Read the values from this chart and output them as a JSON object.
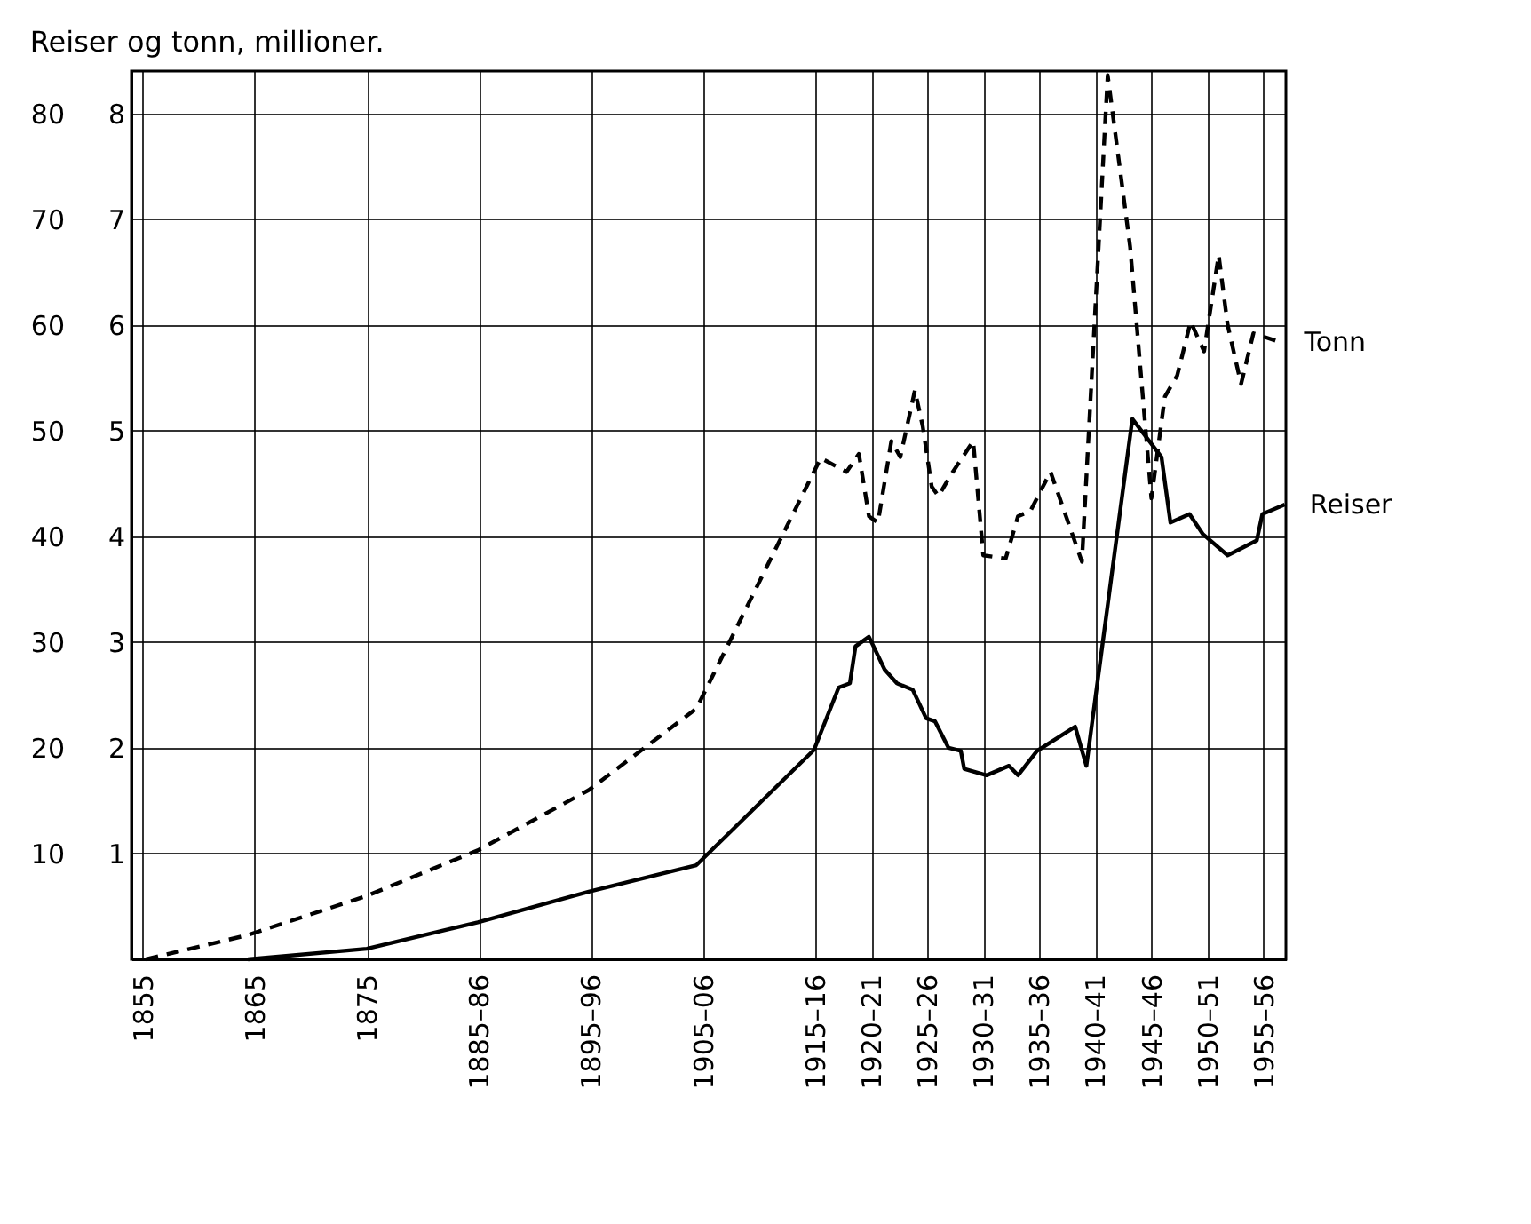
{
  "chart_data": {
    "type": "line",
    "title": "Reiser og tonn, millioner.",
    "xlim": [
      1854,
      1957
    ],
    "xticks": [
      1855,
      1865,
      1875,
      {
        "value": 1885,
        "label": "1885–86"
      },
      {
        "value": 1895,
        "label": "1895–96"
      },
      {
        "value": 1905,
        "label": "1905–06"
      },
      {
        "value": 1915,
        "label": "1915–16"
      },
      {
        "value": 1920,
        "label": "1920–21"
      },
      {
        "value": 1925,
        "label": "1925–26"
      },
      {
        "value": 1930,
        "label": "1930–31"
      },
      {
        "value": 1935,
        "label": "1935–36"
      },
      {
        "value": 1940,
        "label": "1940–41"
      },
      {
        "value": 1945,
        "label": "1945–46"
      },
      {
        "value": 1950,
        "label": "1950–51"
      },
      {
        "value": 1955,
        "label": "1955–56"
      }
    ],
    "ylim": [
      0,
      84
    ],
    "yticks": [
      10,
      20,
      30,
      40,
      50,
      60,
      70,
      80
    ],
    "y2lim": [
      0,
      8.4
    ],
    "y2ticks": [
      1,
      2,
      3,
      4,
      5,
      6,
      7,
      8
    ],
    "grid": true,
    "legend": false,
    "marker": "none",
    "series": [
      {
        "name": "Tonn",
        "color": "#000000",
        "axis": "y2",
        "line_style": "dashed",
        "x": [
          1855.3,
          1864.4,
          1875,
          1884.9,
          1894.8,
          1904.4,
          1915.5,
          1917.8,
          1918.9,
          1919.8,
          1920.6,
          1921.8,
          1922.6,
          1923.9,
          1924.6,
          1925.4,
          1926,
          1927.1,
          1929.1,
          1930,
          1932,
          1933.1,
          1934.2,
          1936,
          1938.8,
          1941.1,
          1943.1,
          1945,
          1946.2,
          1947.3,
          1948.5,
          1949.7,
          1951,
          1951.8,
          1953,
          1954.1,
          1956.4
        ],
        "values": [
          0,
          0.23,
          0.6,
          1.03,
          1.6,
          2.37,
          4.74,
          4.61,
          4.78,
          4.19,
          4.13,
          4.9,
          4.75,
          5.38,
          5.04,
          4.47,
          4.38,
          4.58,
          4.9,
          3.82,
          3.79,
          4.19,
          4.24,
          4.61,
          3.76,
          8.36,
          6.74,
          4.36,
          5.32,
          5.52,
          6.03,
          5.75,
          6.66,
          6.0,
          5.44,
          5.92,
          5.84
        ]
      },
      {
        "name": "Reiser",
        "color": "#000000",
        "line_style": "solid",
        "x": [
          1864.4,
          1875,
          1884.9,
          1894.8,
          1904.4,
          1914.9,
          1917.1,
          1918.1,
          1918.6,
          1919.8,
          1921.2,
          1922.3,
          1923.7,
          1924.9,
          1925.7,
          1926.9,
          1928,
          1928.3,
          1930.3,
          1932.3,
          1933.1,
          1934.8,
          1938.2,
          1939.2,
          1943.3,
          1945.9,
          1946.7,
          1948.4,
          1949.6,
          1951.8,
          1954.4,
          1954.9,
          1956.9
        ],
        "values": [
          0,
          1.0,
          3.5,
          6.4,
          8.9,
          19.8,
          25.7,
          26.1,
          29.6,
          30.5,
          27.4,
          26.1,
          25.5,
          22.8,
          22.5,
          20.0,
          19.7,
          18.0,
          17.4,
          18.3,
          17.4,
          19.7,
          22.0,
          18.3,
          51.1,
          47.5,
          41.3,
          42.1,
          40.2,
          38.2,
          39.6,
          42.1,
          43.0
        ]
      }
    ]
  }
}
